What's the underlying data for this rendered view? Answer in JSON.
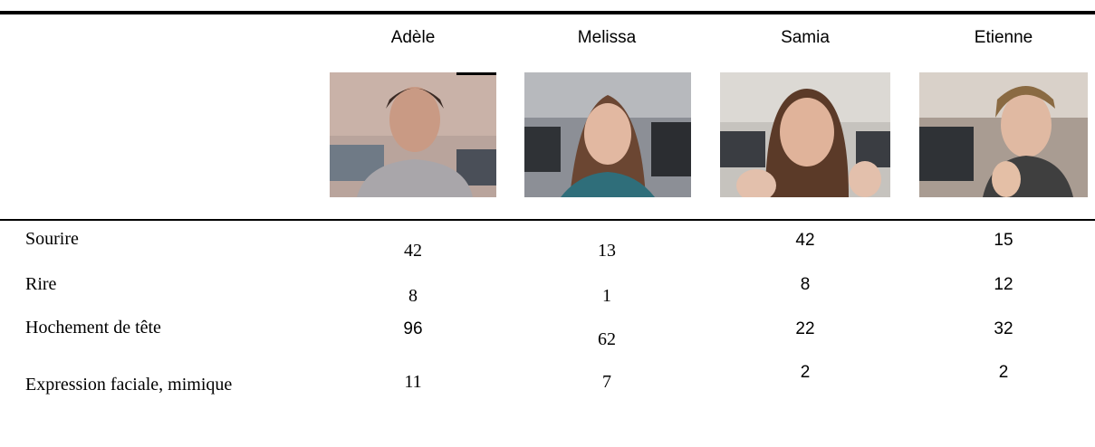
{
  "table": {
    "columns": [
      "Adèle",
      "Melissa",
      "Samia",
      "Etienne"
    ],
    "rows": [
      {
        "label": "Sourire",
        "values": [
          42,
          13,
          42,
          15
        ]
      },
      {
        "label": "Rire",
        "values": [
          8,
          1,
          8,
          12
        ]
      },
      {
        "label": "Hochement de tête",
        "values": [
          96,
          62,
          22,
          32
        ]
      },
      {
        "label": "Expression faciale, mimique",
        "values": [
          11,
          7,
          2,
          2
        ]
      }
    ]
  }
}
